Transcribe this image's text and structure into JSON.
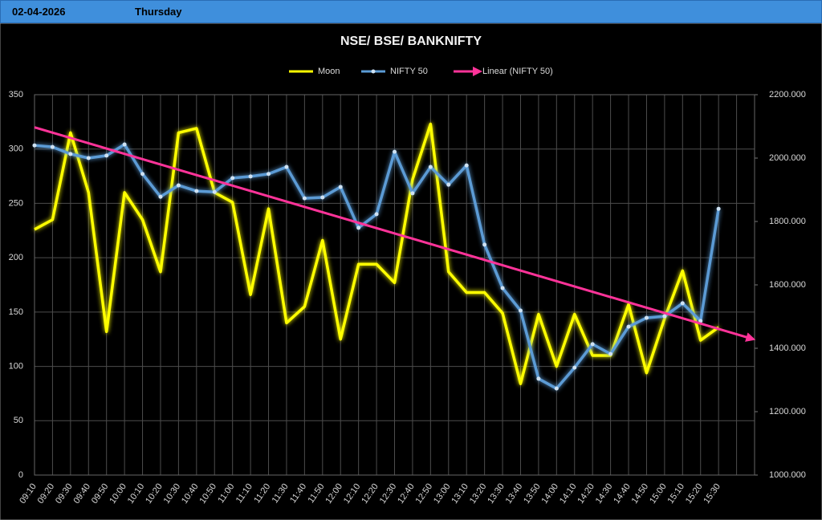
{
  "header": {
    "date": "02-04-2026",
    "day": "Thursday"
  },
  "chart_data": {
    "type": "line",
    "title": "NSE/ BSE/ BANKNIFTY",
    "categories": [
      "09:10",
      "09:20",
      "09:30",
      "09:40",
      "09:50",
      "10:00",
      "10:10",
      "10:20",
      "10:30",
      "10:40",
      "10:50",
      "11:00",
      "11:10",
      "11:20",
      "11:30",
      "11:40",
      "11:50",
      "12:00",
      "12:10",
      "12:20",
      "12:30",
      "12:40",
      "12:50",
      "13:00",
      "13:10",
      "13:20",
      "13:30",
      "13:40",
      "13:50",
      "14:00",
      "14:10",
      "14:20",
      "14:30",
      "14:40",
      "14:50",
      "15:00",
      "15:10",
      "15:20",
      "15:30"
    ],
    "series": [
      {
        "name": "Moon",
        "color": "#ffff00",
        "axis": "y",
        "values": [
          226,
          235,
          315,
          260,
          132,
          260,
          235,
          187,
          315,
          319,
          260,
          251,
          166,
          245,
          140,
          155,
          216,
          125,
          194,
          194,
          177,
          272,
          323,
          187,
          168,
          168,
          149,
          84,
          148,
          100,
          148,
          110,
          110,
          157,
          94,
          144,
          188,
          124,
          136
        ]
      },
      {
        "name": "NIFTY 50",
        "color": "#5b9bd5",
        "axis": "y2",
        "values": [
          2040,
          2035,
          2013,
          2000,
          2008,
          2043,
          1950,
          1878,
          1914,
          1896,
          1893,
          1937,
          1942,
          1950,
          1972,
          1873,
          1876,
          1909,
          1780,
          1823,
          2020,
          1889,
          1972,
          1916,
          1977,
          1727,
          1590,
          1519,
          1304,
          1273,
          1339,
          1413,
          1382,
          1468,
          1496,
          1501,
          1542,
          1486,
          1840
        ]
      }
    ],
    "trendline": {
      "name": "Linear (NIFTY 50)",
      "color": "#ff3399"
    },
    "ylim": [
      0,
      350
    ],
    "yticks": [
      0,
      50,
      100,
      150,
      200,
      250,
      300,
      350
    ],
    "y2lim": [
      1000,
      2200
    ],
    "y2ticks": [
      {
        "value": 1000,
        "label": "1000.000"
      },
      {
        "value": 1200,
        "label": "1200.000"
      },
      {
        "value": 1400,
        "label": "1400.000"
      },
      {
        "value": 1600,
        "label": "1600.000"
      },
      {
        "value": 1800,
        "label": "1800.000"
      },
      {
        "value": 2000,
        "label": "2000.000"
      },
      {
        "value": 2200,
        "label": "2200.000"
      }
    ],
    "grid": true,
    "legend": "top"
  }
}
